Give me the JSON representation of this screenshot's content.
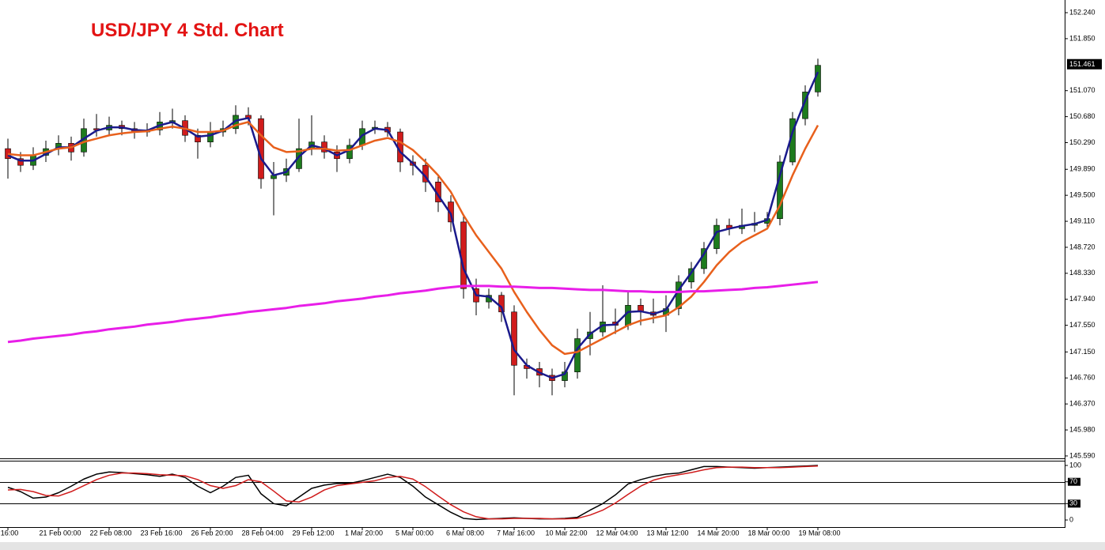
{
  "chart_data": [
    {
      "type": "candlestick",
      "title": "USD/JPY 4 Std. Chart",
      "categories": [
        "16:00",
        null,
        null,
        null,
        "21 Feb 00:00",
        null,
        null,
        null,
        "22 Feb 08:00",
        null,
        null,
        null,
        "23 Feb 16:00",
        null,
        null,
        null,
        "26 Feb 20:00",
        null,
        null,
        null,
        "28 Feb 04:00",
        null,
        null,
        null,
        "29 Feb 12:00",
        null,
        null,
        null,
        "1 Mar 20:00",
        null,
        null,
        null,
        "5 Mar 00:00",
        null,
        null,
        null,
        "6 Mar 08:00",
        null,
        null,
        null,
        "7 Mar 16:00",
        null,
        null,
        null,
        "10 Mar 22:00",
        null,
        null,
        null,
        "12 Mar 04:00",
        null,
        null,
        null,
        "13 Mar 12:00",
        null,
        null,
        null,
        "14 Mar 20:00",
        null,
        null,
        null,
        "18 Mar 00:00",
        null,
        null,
        null,
        "19 Mar 08:00"
      ],
      "open": [
        150.2,
        150.05,
        149.95,
        150.1,
        150.2,
        150.28,
        150.15,
        150.5,
        150.48,
        150.55,
        150.5,
        150.45,
        150.48,
        150.6,
        150.62,
        150.4,
        150.3,
        150.45,
        150.5,
        150.7,
        150.65,
        149.75,
        149.8,
        149.9,
        150.2,
        150.3,
        150.15,
        150.05,
        150.25,
        150.5,
        150.52,
        150.45,
        150.0,
        149.95,
        149.7,
        149.4,
        149.1,
        148.1,
        147.9,
        148.0,
        147.75,
        146.95,
        146.9,
        146.8,
        146.72,
        146.85,
        147.35,
        147.45,
        147.6,
        147.55,
        147.85,
        147.75,
        147.7,
        147.8,
        148.2,
        148.4,
        148.7,
        149.05,
        149.0,
        149.05,
        149.08,
        149.15,
        150.0,
        150.65,
        151.05
      ],
      "high": [
        150.35,
        150.15,
        150.22,
        150.32,
        150.4,
        150.38,
        150.65,
        150.72,
        150.68,
        150.62,
        150.6,
        150.58,
        150.75,
        150.8,
        150.7,
        150.5,
        150.6,
        150.62,
        150.85,
        150.82,
        150.7,
        150.0,
        150.05,
        150.65,
        150.7,
        150.4,
        150.25,
        150.35,
        150.62,
        150.62,
        150.6,
        150.5,
        150.1,
        150.05,
        149.8,
        149.5,
        149.2,
        148.25,
        148.1,
        148.05,
        147.85,
        147.05,
        147.0,
        146.9,
        147.0,
        147.5,
        147.75,
        148.15,
        147.8,
        148.05,
        147.95,
        147.95,
        148.0,
        148.3,
        148.5,
        148.8,
        149.15,
        149.15,
        149.3,
        149.25,
        149.25,
        150.1,
        150.75,
        151.15,
        151.55
      ],
      "low": [
        149.75,
        149.85,
        149.88,
        150.0,
        150.1,
        150.02,
        150.08,
        150.38,
        150.4,
        150.4,
        150.35,
        150.38,
        150.4,
        150.5,
        150.3,
        150.05,
        150.22,
        150.38,
        150.42,
        150.55,
        149.6,
        149.2,
        149.7,
        149.85,
        150.1,
        150.05,
        149.85,
        149.98,
        150.18,
        150.42,
        150.38,
        149.85,
        149.8,
        149.55,
        149.25,
        148.95,
        147.95,
        147.7,
        147.8,
        147.6,
        146.5,
        146.75,
        146.62,
        146.5,
        146.62,
        146.75,
        147.1,
        147.38,
        147.42,
        147.48,
        147.55,
        147.58,
        147.45,
        147.7,
        148.1,
        148.32,
        148.62,
        148.9,
        148.92,
        148.95,
        149.0,
        149.05,
        149.95,
        150.55,
        150.98
      ],
      "close": [
        150.05,
        149.95,
        150.1,
        150.2,
        150.28,
        150.15,
        150.5,
        150.48,
        150.55,
        150.5,
        150.45,
        150.48,
        150.6,
        150.62,
        150.4,
        150.3,
        150.45,
        150.5,
        150.7,
        150.65,
        149.75,
        149.8,
        149.9,
        150.2,
        150.3,
        150.15,
        150.05,
        150.25,
        150.5,
        150.52,
        150.45,
        150.0,
        149.95,
        149.7,
        149.4,
        149.1,
        148.1,
        147.9,
        148.0,
        147.75,
        146.95,
        146.9,
        146.8,
        146.72,
        146.85,
        147.35,
        147.45,
        147.6,
        147.55,
        147.85,
        147.75,
        147.7,
        147.8,
        148.2,
        148.4,
        148.7,
        149.05,
        149.0,
        149.05,
        149.08,
        149.15,
        150.0,
        150.65,
        151.05,
        151.45
      ],
      "up_color": "#1e7b1e",
      "down_color": "#d01c1c",
      "lines": [
        {
          "color": "#1a1a8c",
          "values": [
            150.1,
            150.02,
            150.02,
            150.12,
            150.22,
            150.22,
            150.35,
            150.47,
            150.52,
            150.52,
            150.48,
            150.47,
            150.55,
            150.6,
            150.5,
            150.38,
            150.4,
            150.47,
            150.62,
            150.66,
            150.05,
            149.8,
            149.85,
            150.08,
            150.25,
            150.2,
            150.1,
            150.18,
            150.4,
            150.5,
            150.48,
            150.15,
            149.98,
            149.78,
            149.5,
            149.22,
            148.4,
            148.0,
            147.98,
            147.82,
            147.18,
            146.95,
            146.84,
            146.76,
            146.82,
            147.2,
            147.42,
            147.55,
            147.56,
            147.75,
            147.76,
            147.72,
            147.78,
            148.08,
            148.34,
            148.62,
            148.95,
            149.0,
            149.04,
            149.07,
            149.13,
            149.8,
            150.45,
            150.92,
            151.35
          ]
        },
        {
          "color": "#e8601c",
          "values": [
            150.12,
            150.1,
            150.1,
            150.15,
            150.2,
            150.22,
            150.3,
            150.35,
            150.4,
            150.43,
            150.45,
            150.46,
            150.5,
            150.53,
            150.5,
            150.45,
            150.45,
            150.47,
            150.55,
            150.6,
            150.4,
            150.22,
            150.15,
            150.16,
            150.2,
            150.2,
            150.17,
            150.18,
            150.25,
            150.32,
            150.36,
            150.3,
            150.18,
            150.0,
            149.8,
            149.55,
            149.2,
            148.9,
            148.65,
            148.4,
            148.05,
            147.75,
            147.48,
            147.25,
            147.12,
            147.15,
            147.25,
            147.35,
            147.45,
            147.55,
            147.62,
            147.66,
            147.7,
            147.82,
            147.98,
            148.2,
            148.45,
            148.65,
            148.8,
            148.9,
            149.0,
            149.35,
            149.8,
            150.2,
            150.55
          ]
        },
        {
          "color": "#e81ee8",
          "values": [
            147.3,
            147.32,
            147.35,
            147.37,
            147.39,
            147.41,
            147.44,
            147.46,
            147.49,
            147.51,
            147.53,
            147.56,
            147.58,
            147.6,
            147.63,
            147.65,
            147.67,
            147.7,
            147.72,
            147.75,
            147.77,
            147.79,
            147.81,
            147.84,
            147.86,
            147.88,
            147.91,
            147.93,
            147.95,
            147.98,
            148.0,
            148.03,
            148.05,
            148.07,
            148.1,
            148.12,
            148.14,
            148.14,
            148.14,
            148.13,
            148.13,
            148.12,
            148.11,
            148.11,
            148.1,
            148.09,
            148.08,
            148.08,
            148.07,
            148.06,
            148.06,
            148.05,
            148.05,
            148.05,
            148.06,
            148.06,
            148.07,
            148.08,
            148.09,
            148.11,
            148.12,
            148.14,
            148.16,
            148.18,
            148.2
          ]
        }
      ],
      "ylim": [
        145.554,
        152.43
      ],
      "yticks": [
        {
          "value": 152.24,
          "label": "152.240"
        },
        {
          "value": 151.85,
          "label": "151.850"
        },
        {
          "value": 151.07,
          "label": "151.070"
        },
        {
          "value": 150.68,
          "label": "150.680"
        },
        {
          "value": 150.29,
          "label": "150.290"
        },
        {
          "value": 149.89,
          "label": "149.890"
        },
        {
          "value": 149.5,
          "label": "149.500"
        },
        {
          "value": 149.11,
          "label": "149.110"
        },
        {
          "value": 148.72,
          "label": "148.720"
        },
        {
          "value": 148.33,
          "label": "148.330"
        },
        {
          "value": 147.94,
          "label": "147.940"
        },
        {
          "value": 147.55,
          "label": "147.550"
        },
        {
          "value": 147.15,
          "label": "147.150"
        },
        {
          "value": 146.76,
          "label": "146.760"
        },
        {
          "value": 146.37,
          "label": "146.370"
        },
        {
          "value": 145.98,
          "label": "145.980"
        },
        {
          "value": 145.59,
          "label": "145.590"
        }
      ],
      "last_price": {
        "value": 151.461,
        "label": "151.461"
      }
    },
    {
      "type": "line",
      "series": [
        {
          "color": "#000000",
          "values": [
            60,
            52,
            40,
            42,
            50,
            62,
            75,
            84,
            88,
            87,
            85,
            83,
            80,
            84,
            78,
            62,
            50,
            62,
            78,
            82,
            48,
            30,
            26,
            42,
            58,
            64,
            67,
            67,
            72,
            78,
            84,
            78,
            62,
            42,
            28,
            14,
            3,
            1,
            2,
            3,
            4,
            3,
            2,
            2,
            3,
            5,
            18,
            30,
            46,
            66,
            74,
            80,
            84,
            86,
            92,
            98,
            98,
            97,
            96,
            95,
            96,
            97,
            98,
            99,
            100
          ]
        },
        {
          "color": "#d01c1c",
          "values": [
            55,
            56,
            52,
            45,
            44,
            52,
            63,
            74,
            82,
            86,
            86,
            85,
            83,
            82,
            81,
            74,
            63,
            58,
            63,
            74,
            70,
            53,
            35,
            33,
            42,
            55,
            63,
            66,
            69,
            72,
            78,
            80,
            75,
            61,
            44,
            28,
            15,
            6,
            2,
            2,
            3,
            3,
            3,
            2,
            2,
            3,
            9,
            18,
            31,
            47,
            62,
            73,
            79,
            83,
            87,
            92,
            96,
            97,
            97,
            96,
            96,
            96,
            97,
            98,
            99
          ]
        }
      ],
      "ylim": [
        -13,
        108.7
      ],
      "yticks": [
        100,
        70,
        30,
        0
      ],
      "levels": [
        70,
        30
      ]
    }
  ]
}
